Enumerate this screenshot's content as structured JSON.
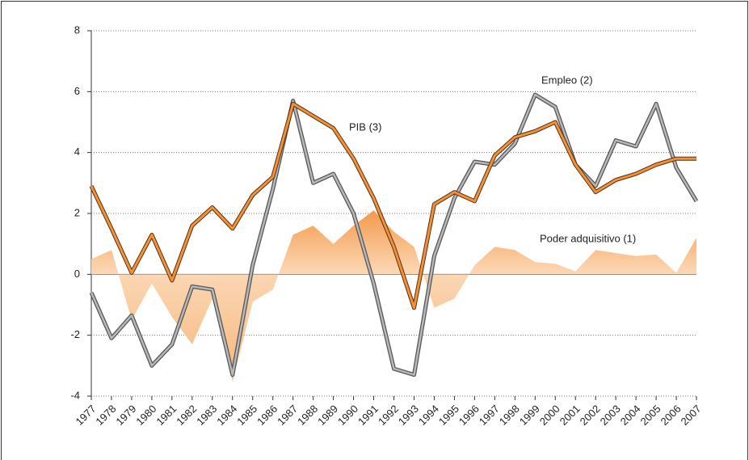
{
  "chart_data": {
    "type": "line",
    "categories": [
      "1977",
      "1978",
      "1979",
      "1980",
      "1981",
      "1982",
      "1983",
      "1984",
      "1985",
      "1986",
      "1987",
      "1988",
      "1989",
      "1990",
      "1991",
      "1992",
      "1993",
      "1994",
      "1995",
      "1996",
      "1997",
      "1998",
      "1999",
      "2000",
      "2001",
      "2002",
      "2003",
      "2004",
      "2005",
      "2006",
      "2007"
    ],
    "series": [
      {
        "name": "Poder adquisitivo (1)",
        "kind": "area",
        "color": "#f4a460",
        "values": [
          0.5,
          0.8,
          -1.5,
          -0.3,
          -1.4,
          -2.3,
          -0.8,
          -3.5,
          -0.9,
          -0.5,
          1.3,
          1.6,
          1.0,
          1.6,
          2.1,
          1.4,
          0.9,
          -1.1,
          -0.8,
          0.3,
          0.9,
          0.8,
          0.4,
          0.35,
          0.1,
          0.8,
          0.7,
          0.6,
          0.65,
          0.05,
          1.2
        ]
      },
      {
        "name": "Empleo (2)",
        "kind": "line",
        "color": "#b8b8b8",
        "values": [
          -0.6,
          -2.1,
          -1.35,
          -3.0,
          -2.3,
          -0.4,
          -0.5,
          -3.3,
          0.3,
          2.8,
          5.7,
          3.0,
          3.3,
          2.0,
          -0.3,
          -3.1,
          -3.3,
          0.6,
          2.5,
          3.7,
          3.6,
          4.3,
          5.9,
          5.5,
          3.6,
          2.9,
          4.4,
          4.2,
          5.6,
          3.5,
          2.4
        ]
      },
      {
        "name": "PIB (3)",
        "kind": "line",
        "color": "#f0923a",
        "values": [
          2.9,
          1.5,
          0.05,
          1.3,
          -0.2,
          1.6,
          2.2,
          1.5,
          2.6,
          3.2,
          5.6,
          5.2,
          4.8,
          3.8,
          2.5,
          0.9,
          -1.1,
          2.3,
          2.7,
          2.4,
          3.9,
          4.5,
          4.7,
          5.0,
          3.6,
          2.7,
          3.1,
          3.3,
          3.6,
          3.8,
          3.8
        ]
      }
    ],
    "ylim": [
      -4,
      8
    ],
    "yticks": [
      -4,
      -2,
      0,
      2,
      4,
      6,
      8
    ],
    "grid": true
  }
}
